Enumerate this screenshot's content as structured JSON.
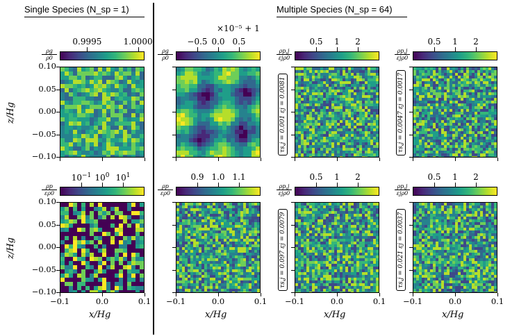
{
  "headers": {
    "single": "Single Species (N_sp = 1)",
    "multiple": "Multiple Species (N_sp = 64)"
  },
  "offset_label": "×10⁻⁵ + 1",
  "colorbars": {
    "c0_top": {
      "label_top": "ρg",
      "label_bot": "ρ0",
      "ticks": [
        "0.9995",
        "1.0000"
      ]
    },
    "c1_top": {
      "label_top": "ρg",
      "label_bot": "ρ0",
      "ticks": [
        "−0.5",
        "0.0",
        "0.5"
      ]
    },
    "c2_top": {
      "label_top": "ρp,j",
      "label_bot": "εjρ0",
      "ticks": [
        "0.5",
        "1",
        "2"
      ]
    },
    "c3_top": {
      "label_top": "ρp,j",
      "label_bot": "εjρ0",
      "ticks": [
        "0.5",
        "1",
        "2"
      ]
    },
    "c0_bot": {
      "label_top": "ρp",
      "label_bot": "ερ0",
      "ticks": [
        "10",
        "10",
        "10"
      ],
      "exps": [
        "−1",
        "0",
        "1"
      ]
    },
    "c1_bot": {
      "label_top": "ρp",
      "label_bot": "ερ0",
      "ticks": [
        "0.9",
        "1.0",
        "1.1"
      ]
    },
    "c2_bot": {
      "label_top": "ρp,j",
      "label_bot": "εjρ0",
      "ticks": [
        "0.5",
        "1",
        "2"
      ]
    },
    "c3_bot": {
      "label_top": "ρp,j",
      "label_bot": "εjρ0",
      "ticks": [
        "0.5",
        "1",
        "2"
      ]
    }
  },
  "annotations": {
    "c2_top": "τs,j = 0.001  εj = 0.0081",
    "c3_top": "τs,j = 0.0047  εj = 0.0017",
    "c2_bot": "τs,j = 0.097  εj = 0.0079",
    "c3_bot": "τs,j = 0.021  εj = 0.0037"
  },
  "y_axis": {
    "label": "z/Hg",
    "ticks": [
      "0.10",
      "0.05",
      "0.00",
      "−0.05",
      "−0.10"
    ]
  },
  "x_axis": {
    "label": "x/Hg",
    "ticks": [
      "−0.1",
      "0.0",
      "0.1"
    ]
  },
  "colors": {
    "viridis_dark": "#440154",
    "viridis_mid": "#21918c",
    "viridis_light": "#fde725"
  }
}
